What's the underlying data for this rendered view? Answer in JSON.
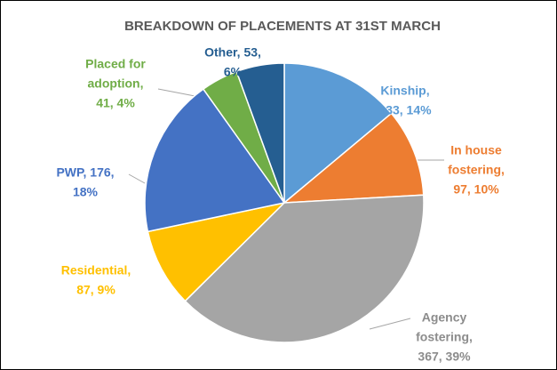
{
  "chart_data": {
    "type": "pie",
    "title": "BREAKDOWN OF PLACEMENTS AT 31ST MARCH",
    "values": [
      133,
      97,
      367,
      87,
      176,
      41,
      53
    ],
    "value_labels": [
      [
        "Kinship,",
        "133, 14%"
      ],
      [
        "In house",
        "fostering,",
        "97, 10%"
      ],
      [
        "Agency",
        "fostering,",
        "367, 39%"
      ],
      [
        "Residential,",
        "87, 9%"
      ],
      [
        "PWP, 176,",
        "18%"
      ],
      [
        "Placed for",
        "adoption,",
        "41, 4%"
      ],
      [
        "Other, 53,",
        "6%"
      ]
    ],
    "colors": [
      "#5b9bd5",
      "#ed7d31",
      "#a5a5a5",
      "#ffc000",
      "#4472c4",
      "#70ad47",
      "#255e91"
    ]
  }
}
